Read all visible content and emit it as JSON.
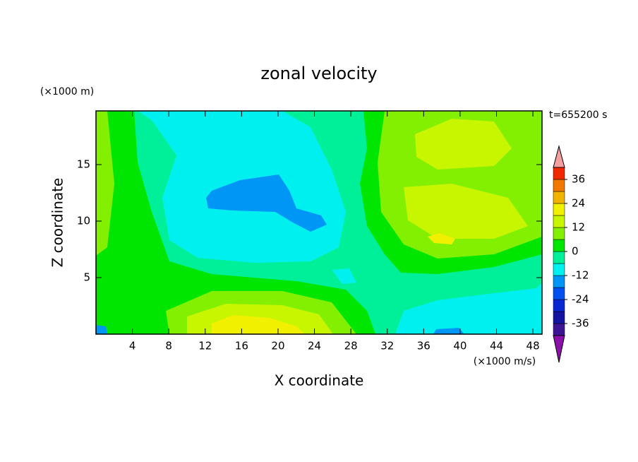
{
  "chart_data": {
    "type": "contour",
    "title": "zonal velocity",
    "xlabel": "X coordinate",
    "ylabel": "Z coordinate",
    "x_unit_label": "(×1000 m/s)",
    "y_unit_label": "(×1000 m)",
    "time_label": "t=655200 s",
    "xlim": [
      0,
      49
    ],
    "ylim": [
      0,
      19.75
    ],
    "xticks": [
      4,
      8,
      12,
      16,
      20,
      24,
      28,
      32,
      36,
      40,
      44,
      48
    ],
    "yticks": [
      5,
      10,
      15
    ],
    "colorbar": {
      "levels": [
        -42,
        -36,
        -30,
        -24,
        -18,
        -12,
        -6,
        0,
        6,
        12,
        18,
        24,
        30,
        36,
        42
      ],
      "colors": [
        "#3c1496",
        "#1414a0",
        "#0a28d2",
        "#0050f0",
        "#0096f5",
        "#00f0f0",
        "#00f09a",
        "#00e600",
        "#82f000",
        "#c8f500",
        "#f0f000",
        "#f0b400",
        "#f07800",
        "#f02800"
      ],
      "under_color": "#8c10aa",
      "over_color": "#f4a0a0",
      "ticks": [
        -36,
        -24,
        -12,
        0,
        12,
        24,
        36
      ]
    }
  }
}
